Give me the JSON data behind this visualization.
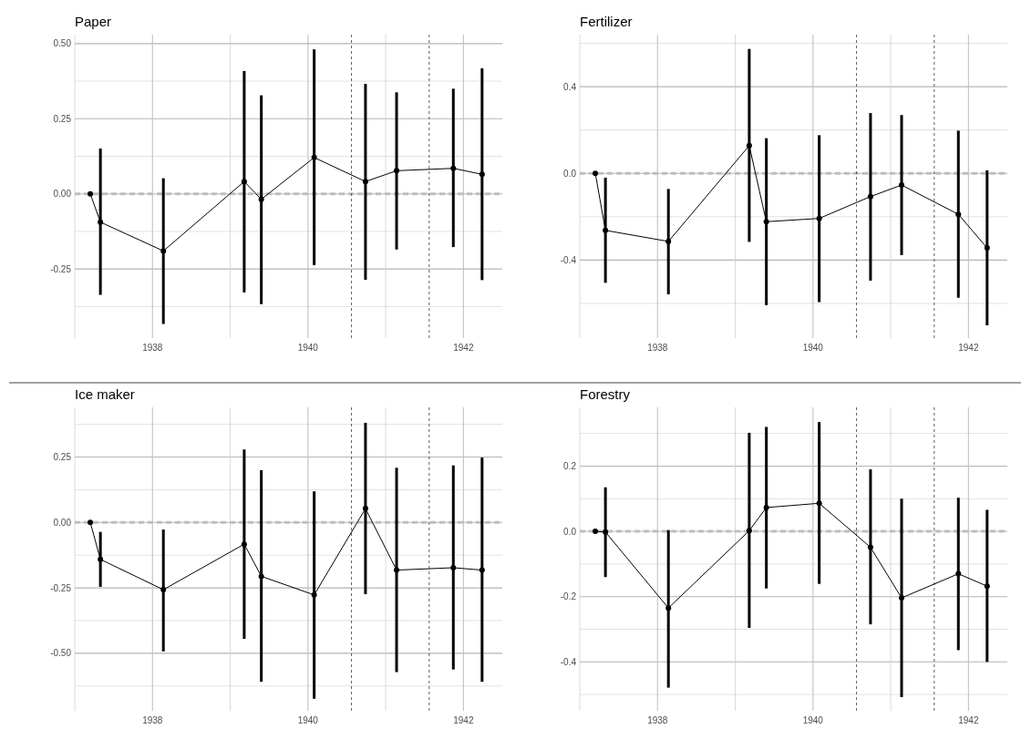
{
  "chart_data": [
    {
      "type": "line",
      "title": "Paper",
      "x": [
        1937.2,
        1937.33,
        1938.14,
        1939.18,
        1939.4,
        1940.08,
        1940.74,
        1941.14,
        1941.87,
        1942.24
      ],
      "series": [
        {
          "color": "#000000",
          "values": [
            0,
            -0.094,
            -0.19,
            0.041,
            -0.018,
            0.121,
            0.041,
            0.077,
            0.085,
            0.065
          ],
          "errors": [
            null,
            [
              -0.336,
              0.151
            ],
            [
              -0.433,
              0.052
            ],
            [
              -0.328,
              0.409
            ],
            [
              -0.367,
              0.328
            ],
            [
              -0.237,
              0.481
            ],
            [
              -0.286,
              0.366
            ],
            [
              -0.185,
              0.338
            ],
            [
              -0.177,
              0.35
            ],
            [
              -0.287,
              0.418
            ]
          ]
        }
      ],
      "xlim": [
        1937,
        1942.5
      ],
      "xticks": [
        {
          "value": 1937,
          "label": null
        },
        1938,
        {
          "value": 1939,
          "label": null
        },
        1940,
        {
          "value": 1941,
          "label": null
        },
        1942
      ],
      "ylim": [
        -0.48,
        0.53
      ],
      "yticks": [
        {
          "value": -0.375,
          "label": null
        },
        {
          "value": -0.25,
          "label": "-0.25"
        },
        {
          "value": -0.125,
          "label": null
        },
        {
          "value": 0,
          "label": "0.00"
        },
        {
          "value": 0.125,
          "label": null
        },
        {
          "value": 0.25,
          "label": "0.25"
        },
        {
          "value": 0.375,
          "label": null
        },
        {
          "value": 0.5,
          "label": "0.50"
        }
      ],
      "ref_lines": [
        {
          "axis": "y",
          "value": 0,
          "color": "#bebebe",
          "line_style": "dashed"
        },
        {
          "axis": "x",
          "value": 1940.56,
          "color": "#333333",
          "line_style": "dashed"
        },
        {
          "axis": "x",
          "value": 1941.56,
          "color": "#333333",
          "line_style": "dashed"
        }
      ],
      "grid": true,
      "marker": "circle"
    },
    {
      "type": "line",
      "title": "Fertilizer",
      "x": [
        1937.2,
        1937.33,
        1938.14,
        1939.18,
        1939.4,
        1940.08,
        1940.74,
        1941.14,
        1941.87,
        1942.24
      ],
      "series": [
        {
          "color": "#000000",
          "values": [
            0,
            -0.263,
            -0.314,
            0.128,
            -0.223,
            -0.208,
            -0.107,
            -0.054,
            -0.189,
            -0.344
          ],
          "errors": [
            null,
            [
              -0.505,
              -0.02
            ],
            [
              -0.558,
              -0.072
            ],
            [
              -0.316,
              0.574
            ],
            [
              -0.608,
              0.162
            ],
            [
              -0.594,
              0.176
            ],
            [
              -0.495,
              0.278
            ],
            [
              -0.377,
              0.269
            ],
            [
              -0.574,
              0.197
            ],
            [
              -0.701,
              0.014
            ]
          ]
        }
      ],
      "xlim": [
        1937,
        1942.5
      ],
      "xticks": [
        {
          "value": 1937,
          "label": null
        },
        1938,
        {
          "value": 1939,
          "label": null
        },
        1940,
        {
          "value": 1941,
          "label": null
        },
        1942
      ],
      "ylim": [
        -0.76,
        0.64
      ],
      "yticks": [
        {
          "value": -0.6,
          "label": null
        },
        {
          "value": -0.4,
          "label": "-0.4"
        },
        {
          "value": -0.2,
          "label": null
        },
        {
          "value": 0,
          "label": "0.0"
        },
        {
          "value": 0.2,
          "label": null
        },
        {
          "value": 0.4,
          "label": "0.4"
        },
        {
          "value": 0.6,
          "label": null
        }
      ],
      "ref_lines": [
        {
          "axis": "y",
          "value": 0,
          "color": "#bebebe",
          "line_style": "dashed"
        },
        {
          "axis": "x",
          "value": 1940.56,
          "color": "#333333",
          "line_style": "dashed"
        },
        {
          "axis": "x",
          "value": 1941.56,
          "color": "#333333",
          "line_style": "dashed"
        }
      ],
      "grid": true,
      "marker": "circle"
    },
    {
      "type": "line",
      "title": "Ice maker",
      "x": [
        1937.2,
        1937.33,
        1938.14,
        1939.18,
        1939.4,
        1940.08,
        1940.74,
        1941.14,
        1941.87,
        1942.24
      ],
      "series": [
        {
          "color": "#000000",
          "values": [
            0,
            -0.141,
            -0.257,
            -0.083,
            -0.206,
            -0.277,
            0.053,
            -0.182,
            -0.173,
            -0.182
          ],
          "errors": [
            null,
            [
              -0.246,
              -0.036
            ],
            [
              -0.493,
              -0.027
            ],
            [
              -0.445,
              0.279
            ],
            [
              -0.609,
              0.2
            ],
            [
              -0.674,
              0.119
            ],
            [
              -0.274,
              0.381
            ],
            [
              -0.572,
              0.209
            ],
            [
              -0.562,
              0.218
            ],
            [
              -0.609,
              0.248
            ]
          ]
        }
      ],
      "xlim": [
        1937,
        1942.5
      ],
      "xticks": [
        {
          "value": 1937,
          "label": null
        },
        1938,
        {
          "value": 1939,
          "label": null
        },
        1940,
        {
          "value": 1941,
          "label": null
        },
        1942
      ],
      "ylim": [
        -0.72,
        0.44
      ],
      "yticks": [
        {
          "value": -0.625,
          "label": null
        },
        {
          "value": -0.5,
          "label": "-0.50"
        },
        {
          "value": -0.375,
          "label": null
        },
        {
          "value": -0.25,
          "label": "-0.25"
        },
        {
          "value": -0.125,
          "label": null
        },
        {
          "value": 0,
          "label": "0.00"
        },
        {
          "value": 0.125,
          "label": null
        },
        {
          "value": 0.25,
          "label": "0.25"
        },
        {
          "value": 0.375,
          "label": null
        }
      ],
      "ref_lines": [
        {
          "axis": "y",
          "value": 0,
          "color": "#bebebe",
          "line_style": "dashed"
        },
        {
          "axis": "x",
          "value": 1940.56,
          "color": "#333333",
          "line_style": "dashed"
        },
        {
          "axis": "x",
          "value": 1941.56,
          "color": "#333333",
          "line_style": "dashed"
        }
      ],
      "grid": true,
      "marker": "circle"
    },
    {
      "type": "line",
      "title": "Forestry",
      "x": [
        1937.2,
        1937.33,
        1938.14,
        1939.18,
        1939.4,
        1940.08,
        1940.74,
        1941.14,
        1941.87,
        1942.24
      ],
      "series": [
        {
          "color": "#000000",
          "values": [
            0,
            -0.002,
            -0.235,
            0.002,
            0.073,
            0.086,
            -0.049,
            -0.204,
            -0.13,
            -0.168
          ],
          "errors": [
            null,
            [
              -0.14,
              0.135
            ],
            [
              -0.479,
              0.004
            ],
            [
              -0.296,
              0.302
            ],
            [
              -0.175,
              0.32
            ],
            [
              -0.161,
              0.335
            ],
            [
              -0.285,
              0.19
            ],
            [
              -0.508,
              0.1
            ],
            [
              -0.364,
              0.103
            ],
            [
              -0.4,
              0.066
            ]
          ]
        }
      ],
      "xlim": [
        1937,
        1942.5
      ],
      "xticks": [
        {
          "value": 1937,
          "label": null
        },
        1938,
        {
          "value": 1939,
          "label": null
        },
        1940,
        {
          "value": 1941,
          "label": null
        },
        1942
      ],
      "ylim": [
        -0.55,
        0.38
      ],
      "yticks": [
        {
          "value": -0.5,
          "label": null
        },
        {
          "value": -0.4,
          "label": "-0.4"
        },
        {
          "value": -0.3,
          "label": null
        },
        {
          "value": -0.2,
          "label": "-0.2"
        },
        {
          "value": -0.1,
          "label": null
        },
        {
          "value": 0,
          "label": "0.0"
        },
        {
          "value": 0.1,
          "label": null
        },
        {
          "value": 0.2,
          "label": "0.2"
        },
        {
          "value": 0.3,
          "label": null
        }
      ],
      "ref_lines": [
        {
          "axis": "y",
          "value": 0,
          "color": "#bebebe",
          "line_style": "dashed"
        },
        {
          "axis": "x",
          "value": 1940.56,
          "color": "#333333",
          "line_style": "dashed"
        },
        {
          "axis": "x",
          "value": 1941.56,
          "color": "#333333",
          "line_style": "dashed"
        }
      ],
      "grid": true,
      "marker": "circle"
    }
  ]
}
